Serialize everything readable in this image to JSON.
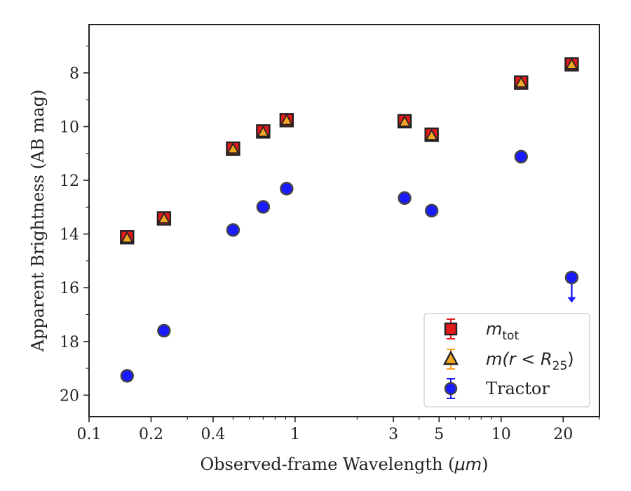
{
  "chart_data": {
    "type": "scatter",
    "xlabel_main": "Observed-frame Wavelength (",
    "xlabel_unit": "μm",
    "xlabel_close": ")",
    "ylabel": "Apparent Brightness (AB mag)",
    "x_scale": "log",
    "y_inverted": true,
    "xlim": [
      0.1,
      30
    ],
    "ylim": [
      20.8,
      6.2
    ],
    "x_ticks": [
      0.1,
      0.2,
      0.4,
      1,
      3,
      5,
      10,
      20
    ],
    "x_tick_labels": [
      "0.1",
      "0.2",
      "0.4",
      "1",
      "3",
      "5",
      "10",
      "20"
    ],
    "y_ticks": [
      8,
      10,
      12,
      14,
      16,
      18,
      20
    ],
    "y_tick_labels": [
      "8",
      "10",
      "12",
      "14",
      "16",
      "18",
      "20"
    ],
    "grid": false,
    "legend_position": "lower-right",
    "series": [
      {
        "name": "m_tot",
        "legend_label_main": "m",
        "legend_label_sub": "tot",
        "marker": "square",
        "color": "#e41a1c",
        "edge_color": "#222222",
        "x": [
          0.153,
          0.231,
          0.5,
          0.7,
          0.91,
          3.4,
          4.6,
          12.5,
          22.0
        ],
        "y": [
          14.12,
          13.42,
          10.82,
          10.18,
          9.76,
          9.8,
          10.3,
          8.36,
          7.68
        ]
      },
      {
        "name": "m(r < R25)",
        "legend_label_main": "m(r < R",
        "legend_label_sub": "25",
        "legend_label_close": ")",
        "marker": "triangle",
        "color": "#f5a623",
        "edge_color": "#222222",
        "x": [
          0.153,
          0.231,
          0.5,
          0.7,
          0.91,
          3.4,
          4.6,
          12.5,
          22.0
        ],
        "y": [
          14.16,
          13.44,
          10.84,
          10.22,
          9.78,
          9.84,
          10.34,
          8.38,
          7.7
        ]
      },
      {
        "name": "Tractor",
        "legend_label_main": "Tractor",
        "marker": "circle",
        "color": "#1a1aff",
        "edge_color": "#444444",
        "x": [
          0.153,
          0.231,
          0.5,
          0.7,
          0.91,
          3.4,
          4.6,
          12.5,
          22.0
        ],
        "y": [
          19.28,
          17.6,
          13.85,
          12.99,
          12.31,
          12.66,
          13.13,
          11.12,
          15.62
        ],
        "upper_limit": [
          false,
          false,
          false,
          false,
          false,
          false,
          false,
          false,
          true
        ]
      }
    ]
  }
}
